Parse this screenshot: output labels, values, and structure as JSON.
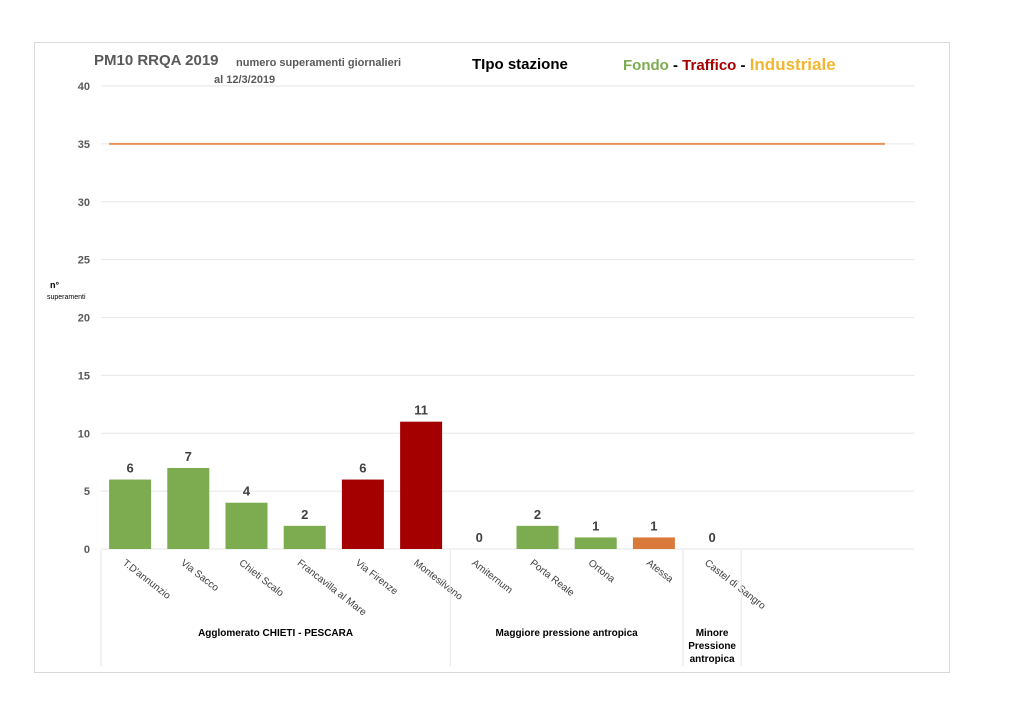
{
  "header": {
    "title": "PM10 RRQA  2019",
    "subtitle_line1": "numero superamenti giornalieri",
    "subtitle_line2": "al 12/3/2019",
    "station_type_label": "TIpo stazione",
    "legend": {
      "fondo": "Fondo",
      "sep1": " - ",
      "traffico": "Traffico",
      "sep2": " - ",
      "industriale": "Industriale"
    }
  },
  "colors": {
    "fondo": "#7cab50",
    "traffico": "#a50000",
    "industriale": "#d97a3a",
    "legend_industriale": "#f2b730",
    "limit_line": "#e8925a",
    "grid": "#e6e6e6",
    "axis_text": "#595959"
  },
  "chart_data": {
    "type": "bar",
    "ylabel_line1": "n°",
    "ylabel_line2": "superamenti",
    "ylim": [
      0,
      40
    ],
    "yticks": [
      0,
      5,
      10,
      15,
      20,
      25,
      30,
      35,
      40
    ],
    "grid": true,
    "limit_value": 35,
    "categories": [
      "T.D'annunzio",
      "Via Sacco",
      "Chieti Scalo",
      "Francavilla al Mare",
      "Via Firenze",
      "Montesilvano",
      "Amiternum",
      "Porta Reale",
      "Ortona",
      "Atessa",
      "Castel di Sangro"
    ],
    "values": [
      6,
      7,
      4,
      2,
      6,
      11,
      0,
      2,
      1,
      1,
      0
    ],
    "station_type": [
      "fondo",
      "fondo",
      "fondo",
      "fondo",
      "traffico",
      "traffico",
      "fondo",
      "fondo",
      "fondo",
      "industriale",
      "fondo"
    ],
    "groups": [
      {
        "lines": [
          "Agglomerato CHIETI - PESCARA"
        ],
        "from": 0,
        "to": 5
      },
      {
        "lines": [
          "Maggiore pressione antropica"
        ],
        "from": 6,
        "to": 9
      },
      {
        "lines": [
          "Minore",
          "Pressione",
          "antropica"
        ],
        "from": 10,
        "to": 10
      }
    ]
  }
}
